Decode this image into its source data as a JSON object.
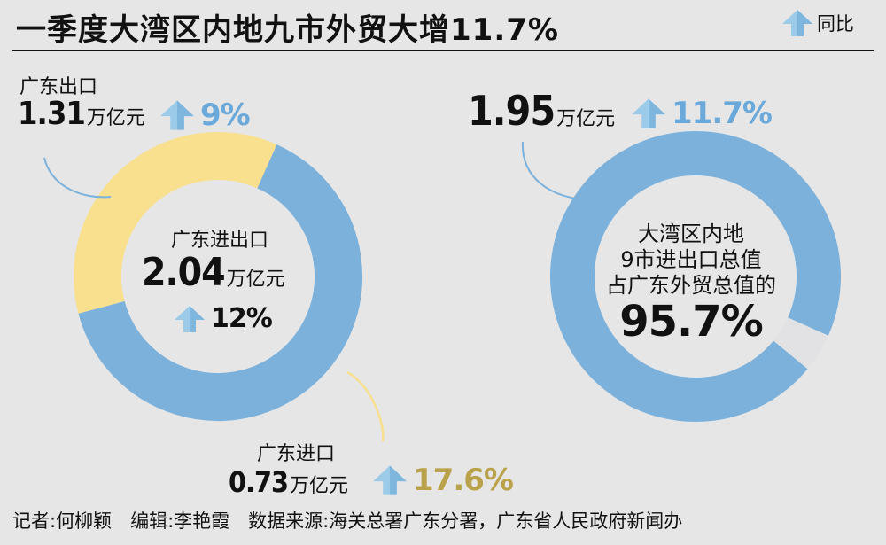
{
  "title": "一季度大湾区内地九市外贸大增11.7%",
  "legend": {
    "label": "同比",
    "icon": "up-arrow-icon"
  },
  "colors": {
    "blue": "#7cb1db",
    "yellow": "#f8e08e",
    "gray": "#e2e2e4",
    "arrow": "#9ccbea",
    "pct_blue": "#6aa9da",
    "pct_yellow": "#b9a24a",
    "bg": "#e6e6e6"
  },
  "left_chart": {
    "export": {
      "label": "广东出口",
      "amount": "1.31",
      "unit": "万亿元",
      "growth": "9%"
    },
    "import": {
      "label": "广东进口",
      "amount": "0.73",
      "unit": "万亿元",
      "growth": "17.6%"
    },
    "center": {
      "label": "广东进出口",
      "amount": "2.04",
      "unit": "万亿元",
      "growth": "12%"
    }
  },
  "right_chart": {
    "total": {
      "amount": "1.95",
      "unit": "万亿元",
      "growth": "11.7%"
    },
    "center": {
      "line1": "大湾区内地",
      "line2": "9市进出口总值",
      "line3": "占广东外贸总值的",
      "share": "95.7%"
    }
  },
  "footer": "记者:何柳颖　编辑:李艳霞　数据来源:海关总署广东分署，广东省人民政府新闻办",
  "chart_data": [
    {
      "type": "pie",
      "title": "广东进出口",
      "categories": [
        "广东出口",
        "广东进口"
      ],
      "values": [
        1.31,
        0.73
      ],
      "unit": "万亿元",
      "growth_pct": [
        9,
        17.6
      ],
      "total": 2.04,
      "total_growth_pct": 12
    },
    {
      "type": "pie",
      "categories": [
        "大湾区内地9市",
        ""
      ],
      "values": [
        95.7,
        4.3
      ],
      "unit": "%",
      "amount": 1.95,
      "growth_pct": 11.7
    }
  ]
}
